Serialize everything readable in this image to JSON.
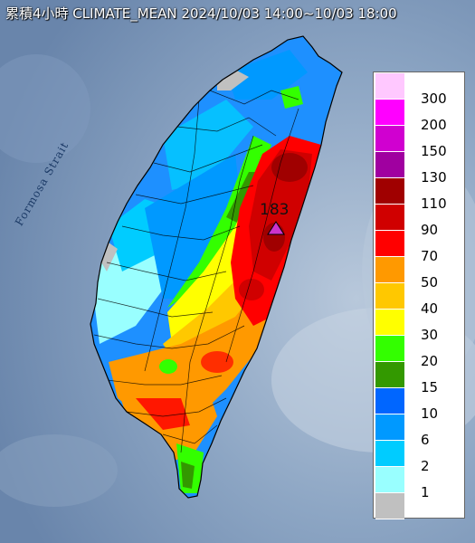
{
  "title": "累積4小時 CLIMATE_MEAN 2024/10/03 14:00~10/03 18:00",
  "strait_label": "Formosa Strait",
  "max_value": "183",
  "legend": {
    "items": [
      {
        "label": "300",
        "color": "#ffc8ff"
      },
      {
        "label": "200",
        "color": "#ff00ff"
      },
      {
        "label": "150",
        "color": "#d000d0"
      },
      {
        "label": "130",
        "color": "#a000a0"
      },
      {
        "label": "110",
        "color": "#a00000"
      },
      {
        "label": "90",
        "color": "#d00000"
      },
      {
        "label": "70",
        "color": "#ff0000"
      },
      {
        "label": "50",
        "color": "#ff9900"
      },
      {
        "label": "40",
        "color": "#ffc800"
      },
      {
        "label": "30",
        "color": "#ffff00"
      },
      {
        "label": "20",
        "color": "#33ff00"
      },
      {
        "label": "15",
        "color": "#339900"
      },
      {
        "label": "10",
        "color": "#0066ff"
      },
      {
        "label": "6",
        "color": "#0099ff"
      },
      {
        "label": "2",
        "color": "#00ccff"
      },
      {
        "label": "1",
        "color": "#99ffff"
      },
      {
        "label": "",
        "color": "#c0c0c0"
      }
    ]
  }
}
